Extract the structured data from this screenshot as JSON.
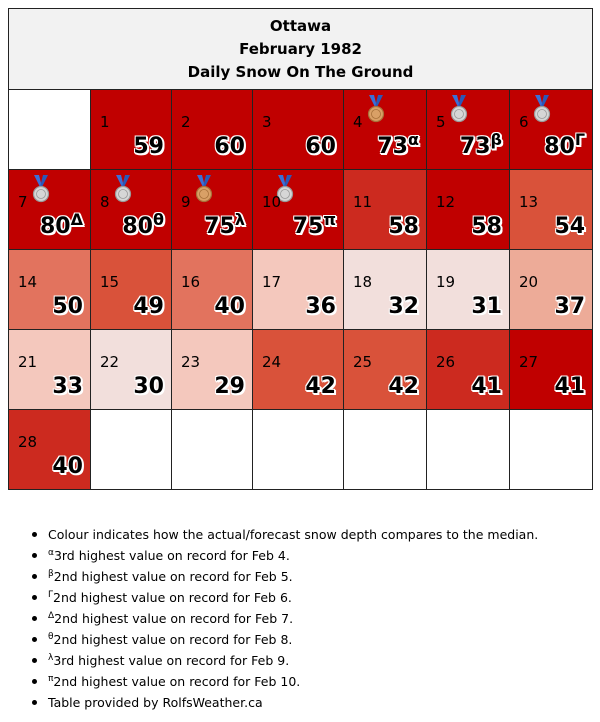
{
  "header": {
    "city": "Ottawa",
    "period": "February 1982",
    "metric": "Daily Snow On The Ground"
  },
  "colors": {
    "dark_red": "#c00000",
    "red": "#cc2a1f",
    "orange_red": "#d9523a",
    "salmon": "#e2735e",
    "light_salmon": "#edab98",
    "pink": "#f4c8bd",
    "pale_pink": "#f2dfdc",
    "blank": "#ffffff"
  },
  "days": [
    {
      "day": "1",
      "value": "59",
      "mark": "",
      "medal": "",
      "color": "#c00000"
    },
    {
      "day": "2",
      "value": "60",
      "mark": "",
      "medal": "",
      "color": "#c00000"
    },
    {
      "day": "3",
      "value": "60",
      "mark": "",
      "medal": "",
      "color": "#c00000"
    },
    {
      "day": "4",
      "value": "73",
      "mark": "α",
      "medal": "bronze",
      "color": "#c00000"
    },
    {
      "day": "5",
      "value": "73",
      "mark": "β",
      "medal": "silver",
      "color": "#c00000"
    },
    {
      "day": "6",
      "value": "80",
      "mark": "Γ",
      "medal": "silver",
      "color": "#c00000"
    },
    {
      "day": "7",
      "value": "80",
      "mark": "Δ",
      "medal": "silver",
      "color": "#c00000"
    },
    {
      "day": "8",
      "value": "80",
      "mark": "θ",
      "medal": "silver",
      "color": "#c00000"
    },
    {
      "day": "9",
      "value": "75",
      "mark": "λ",
      "medal": "bronze",
      "color": "#c00000"
    },
    {
      "day": "10",
      "value": "75",
      "mark": "π",
      "medal": "silver",
      "color": "#c00000"
    },
    {
      "day": "11",
      "value": "58",
      "mark": "",
      "medal": "",
      "color": "#cc2a1f"
    },
    {
      "day": "12",
      "value": "58",
      "mark": "",
      "medal": "",
      "color": "#c00000"
    },
    {
      "day": "13",
      "value": "54",
      "mark": "",
      "medal": "",
      "color": "#d9523a"
    },
    {
      "day": "14",
      "value": "50",
      "mark": "",
      "medal": "",
      "color": "#e2735e"
    },
    {
      "day": "15",
      "value": "49",
      "mark": "",
      "medal": "",
      "color": "#d9523a"
    },
    {
      "day": "16",
      "value": "40",
      "mark": "",
      "medal": "",
      "color": "#e2735e"
    },
    {
      "day": "17",
      "value": "36",
      "mark": "",
      "medal": "",
      "color": "#f4c8bd"
    },
    {
      "day": "18",
      "value": "32",
      "mark": "",
      "medal": "",
      "color": "#f2dfdc"
    },
    {
      "day": "19",
      "value": "31",
      "mark": "",
      "medal": "",
      "color": "#f2dfdc"
    },
    {
      "day": "20",
      "value": "37",
      "mark": "",
      "medal": "",
      "color": "#edab98"
    },
    {
      "day": "21",
      "value": "33",
      "mark": "",
      "medal": "",
      "color": "#f4c8bd"
    },
    {
      "day": "22",
      "value": "30",
      "mark": "",
      "medal": "",
      "color": "#f2dfdc"
    },
    {
      "day": "23",
      "value": "29",
      "mark": "",
      "medal": "",
      "color": "#f4c8bd"
    },
    {
      "day": "24",
      "value": "42",
      "mark": "",
      "medal": "",
      "color": "#d9523a"
    },
    {
      "day": "25",
      "value": "42",
      "mark": "",
      "medal": "",
      "color": "#d9523a"
    },
    {
      "day": "26",
      "value": "41",
      "mark": "",
      "medal": "",
      "color": "#cc2a1f"
    },
    {
      "day": "27",
      "value": "41",
      "mark": "",
      "medal": "",
      "color": "#c00000"
    },
    {
      "day": "28",
      "value": "40",
      "mark": "",
      "medal": "",
      "color": "#cc2a1f"
    }
  ],
  "notes": [
    {
      "mark": "",
      "text": "Colour indicates how the actual/forecast snow depth compares to the median."
    },
    {
      "mark": "α",
      "text": "3rd highest value on record for Feb 4."
    },
    {
      "mark": "β",
      "text": "2nd highest value on record for Feb 5."
    },
    {
      "mark": "Γ",
      "text": "2nd highest value on record for Feb 6."
    },
    {
      "mark": "Δ",
      "text": "2nd highest value on record for Feb 7."
    },
    {
      "mark": "θ",
      "text": "2nd highest value on record for Feb 8."
    },
    {
      "mark": "λ",
      "text": "3rd highest value on record for Feb 9."
    },
    {
      "mark": "π",
      "text": "2nd highest value on record for Feb 10."
    },
    {
      "mark": "",
      "text": "Table provided by RolfsWeather.ca"
    }
  ]
}
